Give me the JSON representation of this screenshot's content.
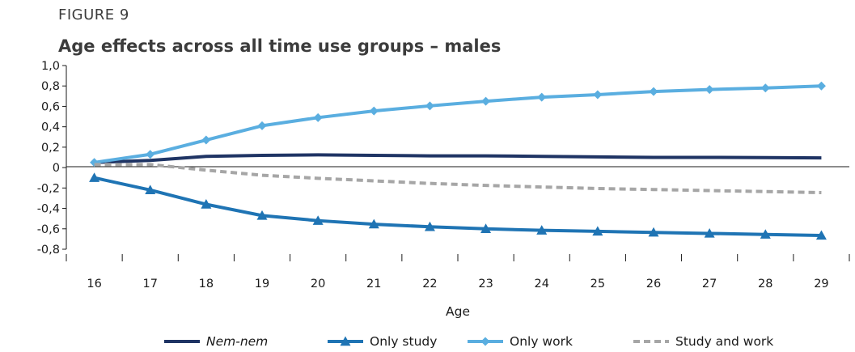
{
  "figure_label": "FIGURE 9",
  "colors": {
    "nem_nem": "#1f3464",
    "only_study": "#1f74b4",
    "only_work": "#5aaee0",
    "study_and_work": "#a6a6a6",
    "axis": "#1a1a1a"
  },
  "chart_data": {
    "type": "line",
    "title": "Age effects across all time use groups – males",
    "xlabel": "Age",
    "ylabel": "",
    "categories": [
      "16",
      "17",
      "18",
      "19",
      "20",
      "21",
      "22",
      "23",
      "24",
      "25",
      "26",
      "27",
      "28",
      "29"
    ],
    "ylim": [
      -0.8,
      1.0
    ],
    "ytick_labels": [
      "1,0",
      "0,8",
      "0,6",
      "0,4",
      "0,2",
      "0",
      "-0,2",
      "-0,4",
      "-0,6",
      "-0,8"
    ],
    "ytick_values": [
      1.0,
      0.8,
      0.6,
      0.4,
      0.2,
      0,
      -0.2,
      -0.4,
      -0.6,
      -0.8
    ],
    "grid": false,
    "legend_position": "bottom",
    "series": [
      {
        "name": "Nem-nem",
        "style": "solid",
        "marker": "none",
        "italic": true,
        "values": [
          0.05,
          0.07,
          0.11,
          0.12,
          0.125,
          0.12,
          0.115,
          0.115,
          0.11,
          0.105,
          0.1,
          0.1,
          0.098,
          0.095
        ]
      },
      {
        "name": "Only study",
        "style": "solid",
        "marker": "triangle",
        "italic": false,
        "values": [
          -0.1,
          -0.22,
          -0.36,
          -0.47,
          -0.52,
          -0.555,
          -0.58,
          -0.6,
          -0.615,
          -0.625,
          -0.635,
          -0.645,
          -0.655,
          -0.665
        ]
      },
      {
        "name": "Only work",
        "style": "solid",
        "marker": "diamond",
        "italic": false,
        "values": [
          0.05,
          0.13,
          0.27,
          0.41,
          0.49,
          0.555,
          0.605,
          0.65,
          0.69,
          0.715,
          0.745,
          0.765,
          0.78,
          0.8
        ]
      },
      {
        "name": "Study and work",
        "style": "dashed",
        "marker": "none",
        "italic": false,
        "values": [
          0.03,
          0.03,
          -0.025,
          -0.075,
          -0.105,
          -0.13,
          -0.155,
          -0.175,
          -0.19,
          -0.205,
          -0.215,
          -0.225,
          -0.235,
          -0.245
        ]
      }
    ]
  }
}
